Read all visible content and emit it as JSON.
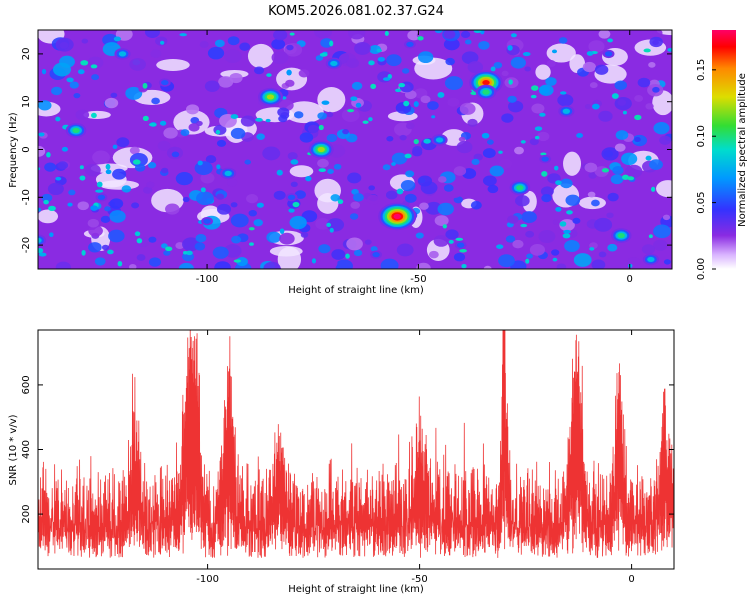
{
  "figure": {
    "title": "KOM5.2026.081.02.37.G24"
  },
  "chart_data": [
    {
      "type": "heatmap",
      "title": "KOM5.2026.081.02.37.G24",
      "xlabel": "Height of straight line (km)",
      "ylabel": "Frequency (Hz)",
      "xlim": [
        -140,
        10
      ],
      "ylim": [
        -25,
        25
      ],
      "x_ticks": [
        -100,
        -50,
        0
      ],
      "x_tick_labels": [
        "-100",
        "-50",
        "0"
      ],
      "y_ticks": [
        -20,
        -10,
        0,
        10,
        20
      ],
      "y_tick_labels": [
        "-20",
        "-10",
        "0",
        "10",
        "20"
      ],
      "colorbar": {
        "label": "Normalized spectral amplitude",
        "range": [
          0.0,
          0.18
        ],
        "ticks": [
          0.0,
          0.05,
          0.1,
          0.15
        ],
        "tick_labels": [
          "0.00",
          "0.05",
          "0.10",
          "0.15"
        ],
        "colormap": [
          "#ffffff",
          "#d9b3ff",
          "#8a2be2",
          "#3333ff",
          "#0099ff",
          "#00ddcc",
          "#33dd33",
          "#dddd00",
          "#ff8800",
          "#ff0000",
          "#ff0066"
        ]
      },
      "background_value": 0.02,
      "peaks": [
        {
          "x": -55,
          "y": -14,
          "v": 0.18
        },
        {
          "x": -34,
          "y": 14,
          "v": 0.16
        },
        {
          "x": -34,
          "y": 12,
          "v": 0.11
        },
        {
          "x": -85,
          "y": 11,
          "v": 0.12
        },
        {
          "x": -73,
          "y": 0,
          "v": 0.12
        },
        {
          "x": -2,
          "y": -18,
          "v": 0.11
        },
        {
          "x": -26,
          "y": -8,
          "v": 0.1
        },
        {
          "x": -131,
          "y": 4,
          "v": 0.1
        },
        {
          "x": -140,
          "y": -19,
          "v": 0.09
        },
        {
          "x": -120,
          "y": 20,
          "v": 0.09
        },
        {
          "x": -70,
          "y": 18,
          "v": 0.09
        },
        {
          "x": -45,
          "y": 2,
          "v": 0.08
        },
        {
          "x": -95,
          "y": -5,
          "v": 0.08
        },
        {
          "x": 5,
          "y": -23,
          "v": 0.09
        },
        {
          "x": -110,
          "y": 14,
          "v": 0.07
        },
        {
          "x": -60,
          "y": -22,
          "v": 0.07
        },
        {
          "x": -15,
          "y": 8,
          "v": 0.08
        },
        {
          "x": -5,
          "y": 20,
          "v": 0.07
        },
        {
          "x": -100,
          "y": -15,
          "v": 0.07
        },
        {
          "x": -80,
          "y": -10,
          "v": 0.07
        },
        {
          "x": -40,
          "y": -20,
          "v": 0.07
        },
        {
          "x": -125,
          "y": -10,
          "v": 0.07
        },
        {
          "x": -20,
          "y": -2,
          "v": 0.07
        },
        {
          "x": -52,
          "y": 22,
          "v": 0.07
        }
      ]
    },
    {
      "type": "line",
      "title": "",
      "xlabel": "Height of straight line (km)",
      "ylabel": "SNR (10 * v/v)",
      "xlim": [
        -140,
        10
      ],
      "ylim": [
        30,
        770
      ],
      "x_ticks": [
        -100,
        -50,
        0
      ],
      "x_tick_labels": [
        "-100",
        "-50",
        "0"
      ],
      "y_ticks": [
        200,
        400,
        600
      ],
      "y_tick_labels": [
        "200",
        "400",
        "600"
      ],
      "series": [
        {
          "name": "SNR",
          "color": "#ee3333",
          "baseline": 185,
          "noise_amplitude": 110,
          "peaks": [
            {
              "x": -104,
              "value": 770,
              "width": 1.5
            },
            {
              "x": -103,
              "value": 720,
              "width": 1.2
            },
            {
              "x": -95,
              "value": 730,
              "width": 1.0
            },
            {
              "x": -117,
              "value": 470,
              "width": 1.0
            },
            {
              "x": -13,
              "value": 760,
              "width": 1.2
            },
            {
              "x": -30,
              "value": 755,
              "width": 0.6
            },
            {
              "x": -3,
              "value": 660,
              "width": 0.8
            },
            {
              "x": -83,
              "value": 430,
              "width": 1.5
            },
            {
              "x": -50,
              "value": 430,
              "width": 1.5
            },
            {
              "x": 8,
              "value": 490,
              "width": 1.2
            }
          ]
        }
      ]
    }
  ]
}
